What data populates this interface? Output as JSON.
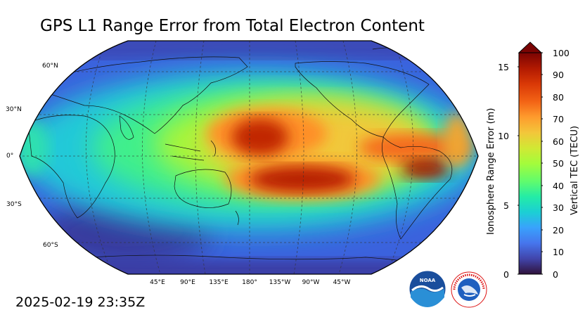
{
  "figure": {
    "title": "GPS L1 Range Error from Total Electron Content",
    "timestamp": "2025-02-19 23:35Z"
  },
  "map": {
    "projection": "Robinson",
    "central_longitude": "180°",
    "lat_labels": [
      "60°N",
      "30°N",
      "0°",
      "30°S",
      "60°S"
    ],
    "lon_labels": [
      "45°E",
      "90°E",
      "135°E",
      "180°",
      "135°W",
      "90°W",
      "45°W"
    ],
    "gridlines": true
  },
  "colorbar": {
    "left_label": "Ionosphere Range Error (m)",
    "right_label": "Vertical TEC (TECU)",
    "left_ticks": [
      "0",
      "5",
      "10",
      "15"
    ],
    "right_ticks": [
      "0",
      "10",
      "20",
      "30",
      "40",
      "50",
      "60",
      "70",
      "80",
      "90",
      "100"
    ],
    "colormap": "turbo",
    "extend": "max",
    "colors": [
      "#30123b",
      "#4145ab",
      "#4675ed",
      "#39a2fc",
      "#1bcfd4",
      "#24eca6",
      "#61fc6c",
      "#a4fc3b",
      "#d1e834",
      "#f3c63a",
      "#fe9b2d",
      "#f36315",
      "#d93806",
      "#b11901",
      "#7a0403"
    ]
  },
  "logos": [
    {
      "name": "noaa-logo",
      "text": "NOAA"
    },
    {
      "name": "nws-logo",
      "text": "NATIONAL WEATHER SERVICE"
    }
  ]
}
